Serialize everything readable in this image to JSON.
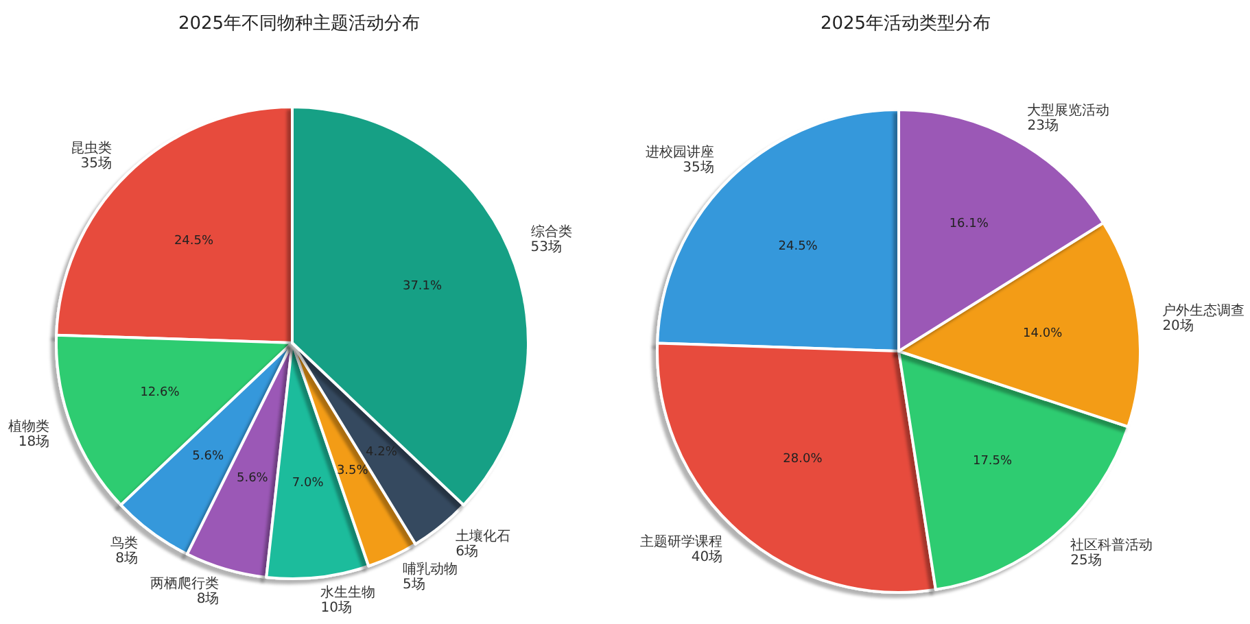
{
  "chart_data": [
    {
      "type": "pie",
      "title": "2025年不同物种主题活动分布",
      "categories": [
        "昆虫类\n35场",
        "植物类\n18场",
        "鸟类\n8场",
        "两栖爬行类\n8场",
        "水生生物\n10场",
        "哺乳动物\n5场",
        "土壤化石\n6场",
        "综合类\n53场"
      ],
      "values": [
        24.5,
        12.6,
        5.6,
        5.6,
        7.0,
        3.5,
        4.2,
        37.1
      ],
      "colors": [
        "#e74c3c",
        "#2ecc71",
        "#3498db",
        "#9b59b6",
        "#1abc9c",
        "#f39c12",
        "#34495e",
        "#16a085"
      ],
      "value_labels": [
        "24.5%",
        "12.6%",
        "5.6%",
        "5.6%",
        "7.0%",
        "3.5%",
        "4.2%",
        "37.1%"
      ]
    },
    {
      "type": "pie",
      "title": "2025年活动类型分布",
      "categories": [
        "进校园讲座\n35场",
        "主题研学课程\n40场",
        "社区科普活动\n25场",
        "户外生态调查\n20场",
        "大型展览活动\n23场"
      ],
      "values": [
        24.5,
        28.0,
        17.5,
        14.0,
        16.1
      ],
      "colors": [
        "#3498db",
        "#e74c3c",
        "#2ecc71",
        "#f39c12",
        "#9b59b6"
      ],
      "value_labels": [
        "24.5%",
        "28.0%",
        "17.5%",
        "14.0%",
        "16.1%"
      ]
    }
  ]
}
